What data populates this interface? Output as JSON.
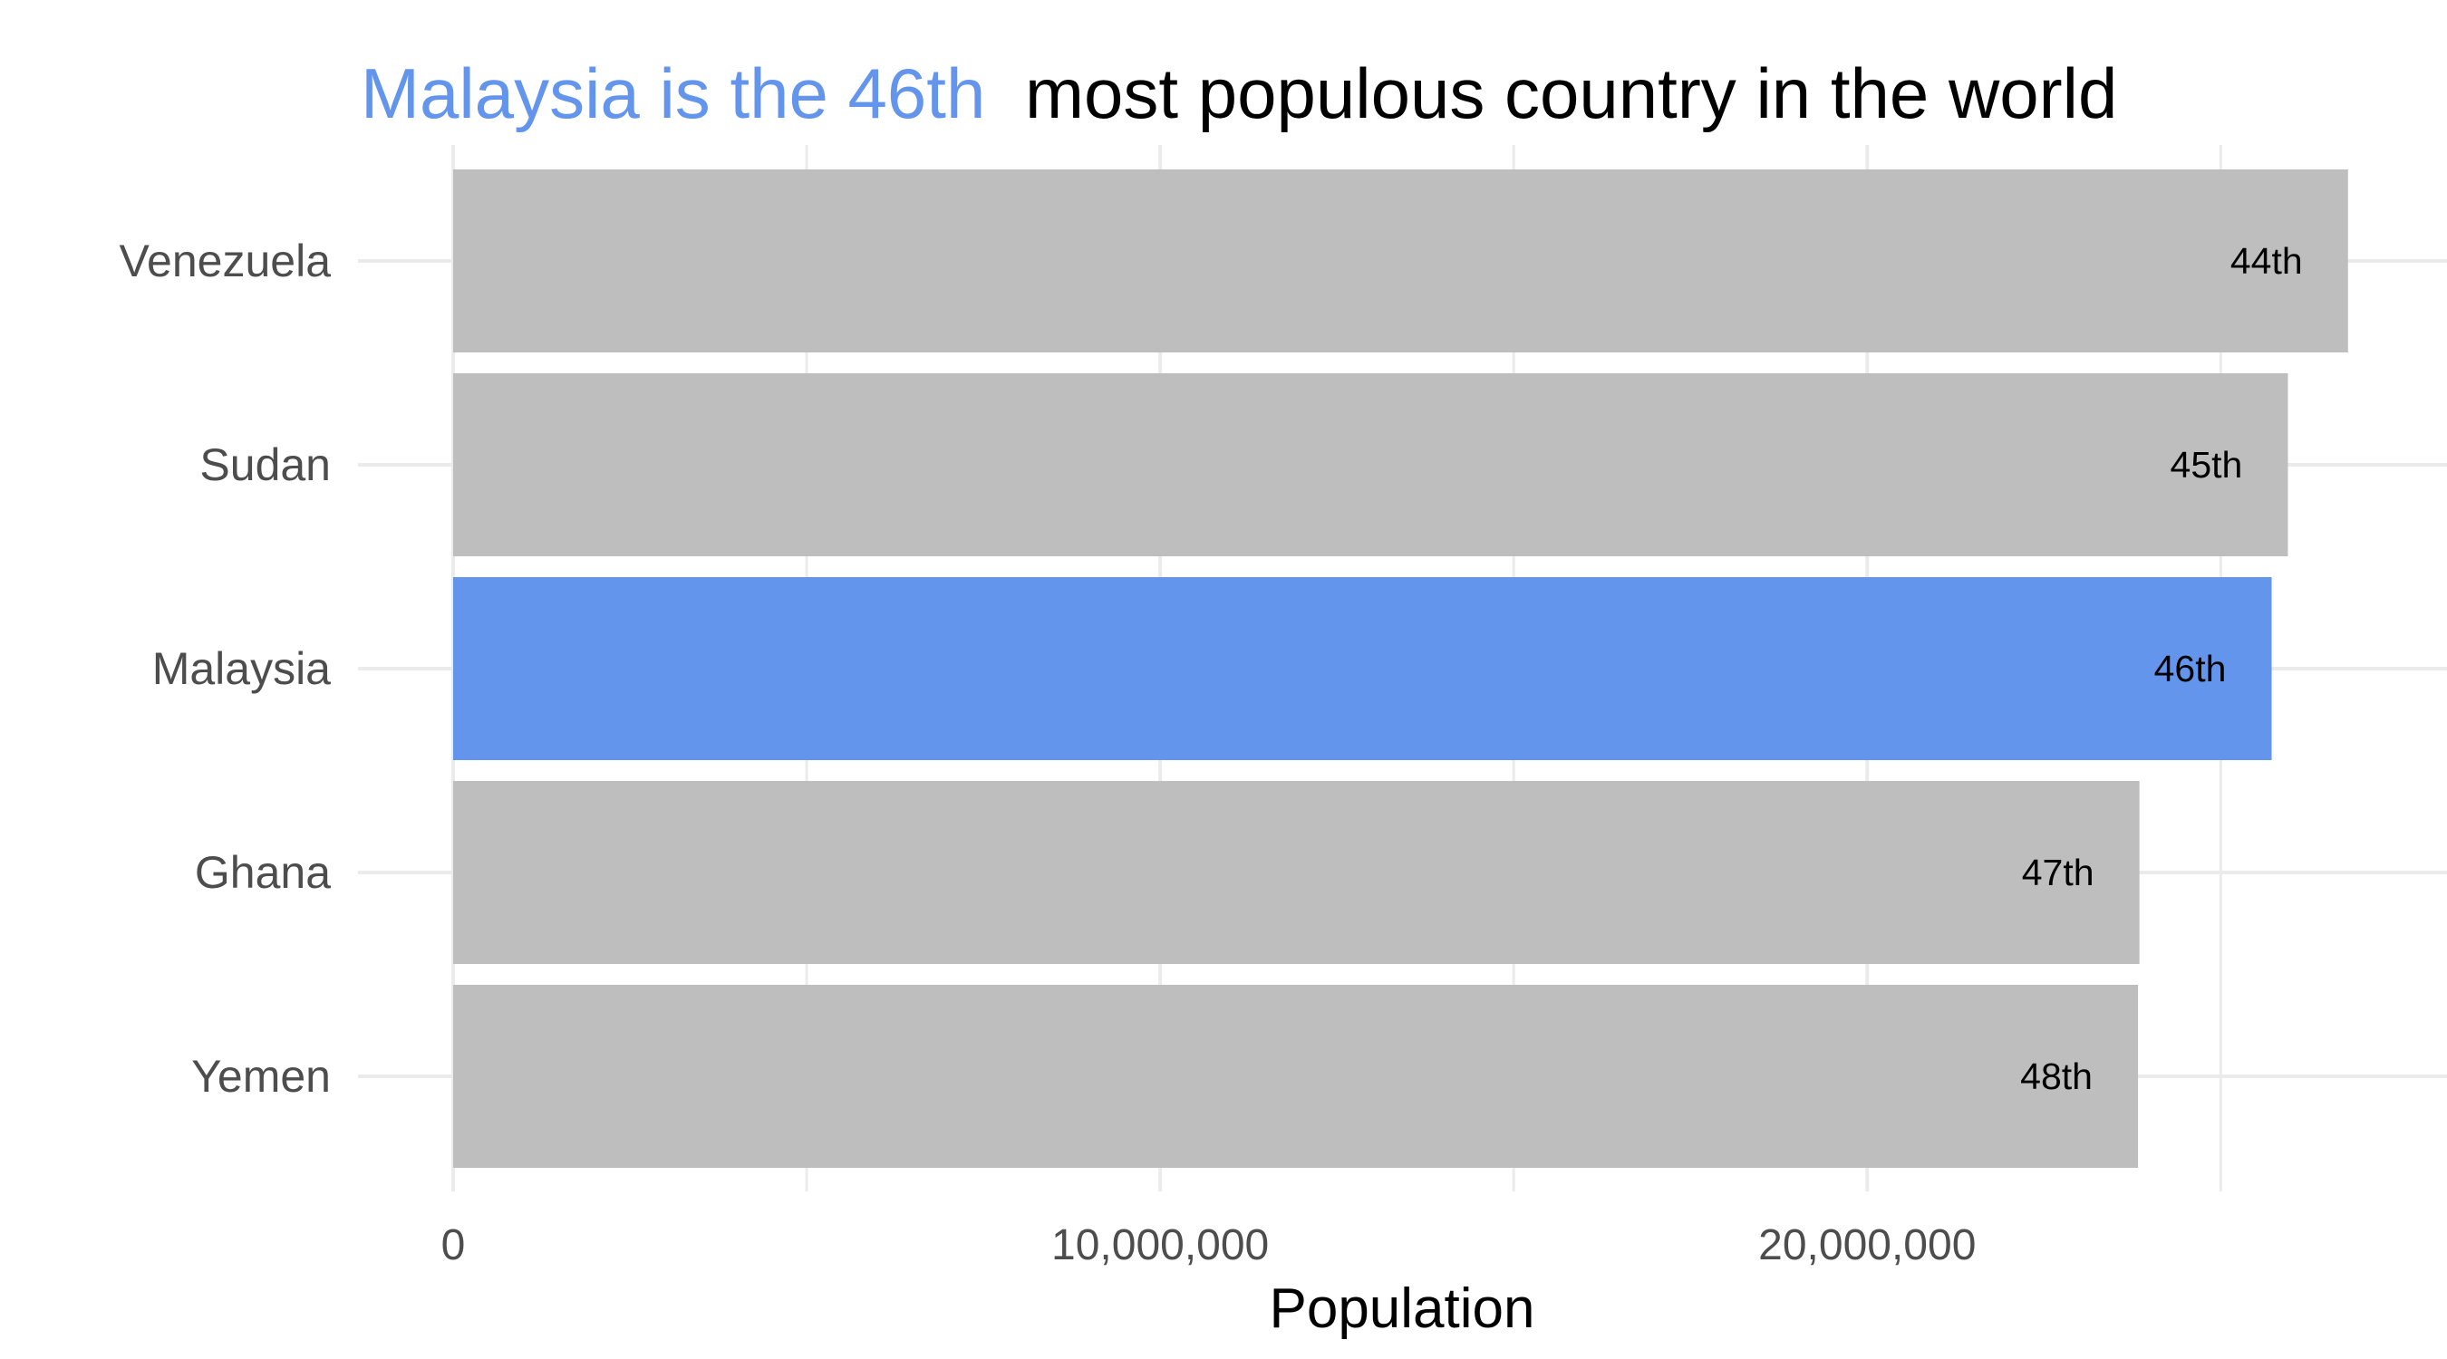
{
  "chart_data": {
    "type": "bar",
    "orientation": "horizontal",
    "title": {
      "highlight": "Malaysia is the 46th",
      "rest": "most populous country in the world"
    },
    "categories": [
      "Venezuela",
      "Sudan",
      "Malaysia",
      "Ghana",
      "Yemen"
    ],
    "values": [
      26800000,
      25950000,
      25720000,
      23850000,
      23830000
    ],
    "labels": [
      "44th",
      "45th",
      "46th",
      "47th",
      "48th"
    ],
    "highlight_category": "Malaysia",
    "xlabel": "Population",
    "ylabel": "",
    "xlim": [
      0,
      28200000
    ],
    "xticks": [
      0,
      10000000,
      20000000
    ],
    "xtick_labels": [
      "0",
      "10,000,000",
      "20,000,000"
    ],
    "grid": true,
    "legend": "none",
    "colors": {
      "highlight": "#6495ED",
      "default": "#BEBEBE",
      "grid": "#EBEBEB",
      "title_highlight": "#6495ED",
      "title_rest": "#000000"
    }
  }
}
